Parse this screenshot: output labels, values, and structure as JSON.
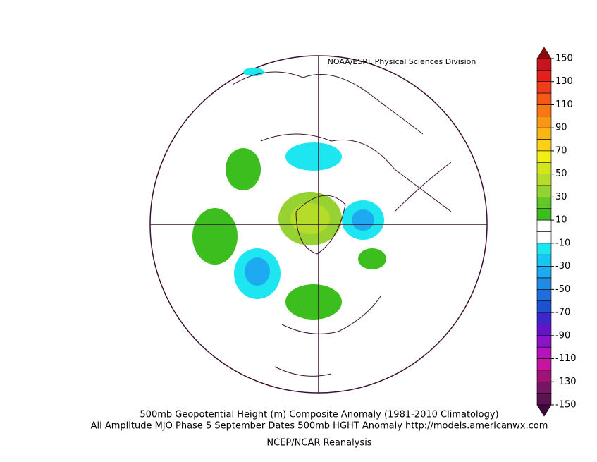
{
  "header": {
    "source": "NOAA/ESRL Physical Sciences Division"
  },
  "caption": {
    "line1": "500mb Geopotential Height (m) Composite Anomaly (1981-2010 Climatology)",
    "line2": "All Amplitude MJO Phase 5 September Dates 500mb HGHT Anomaly http://models.americanwx.com",
    "line3": "NCEP/NCAR Reanalysis"
  },
  "colorbar": {
    "ticks": [
      150,
      130,
      110,
      90,
      70,
      50,
      30,
      10,
      -10,
      -30,
      -50,
      -70,
      -90,
      -110,
      -130,
      -150
    ],
    "colors": [
      "#c8141e",
      "#e61e1e",
      "#f03c1e",
      "#f55a14",
      "#fa7814",
      "#fa9614",
      "#fab414",
      "#fad214",
      "#f0f014",
      "#d2e61e",
      "#b4dc28",
      "#96d232",
      "#64c828",
      "#3cbe1e",
      "#ffffff",
      "#ffffff",
      "#1ee6f0",
      "#14c8f0",
      "#1eaaf0",
      "#1e8ce6",
      "#1e6edc",
      "#1e50d2",
      "#3c28c8",
      "#6414c8",
      "#8c14c8",
      "#b414be",
      "#c814a0",
      "#a01478",
      "#781464",
      "#5a1450"
    ],
    "extend_colors": [
      "#8c0a0a",
      "#3c0a3c"
    ]
  }
}
